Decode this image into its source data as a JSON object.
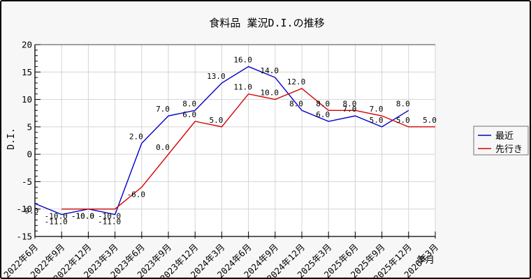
{
  "title": "食料品 業況D.I.の推移",
  "y_axis": {
    "title": "D.I.",
    "tick_labels": [
      "20",
      "15",
      "10",
      "5",
      "0",
      "-5",
      "-10",
      "-15"
    ]
  },
  "x_axis": {
    "title": "年月"
  },
  "legend": {
    "items": [
      {
        "label": "最近",
        "color": "#0000c8"
      },
      {
        "label": "先行き",
        "color": "#d40000"
      }
    ]
  },
  "colors": {
    "background": "#f7f7f7",
    "plot_background": "#ffffff",
    "grid": "#d4d4d4",
    "axis": "#000000",
    "frame_top": "#444444",
    "recent_blue": "#0000c8",
    "outlook_red": "#d40000"
  },
  "chart_data": {
    "type": "line",
    "title": "食料品 業況D.I.の推移",
    "xlabel": "年月",
    "ylabel": "D.I.",
    "categories": [
      "2022年6月",
      "2022年9月",
      "2022年12月",
      "2023年3月",
      "2023年6月",
      "2023年9月",
      "2023年12月",
      "2024年3月",
      "2024年6月",
      "2024年9月",
      "2024年12月",
      "2025年3月",
      "2025年6月",
      "2025年9月",
      "2025年12月",
      "2026年3月"
    ],
    "series": [
      {
        "name": "最近",
        "color": "#0000c8",
        "values": [
          -9.0,
          -11.0,
          -10.0,
          -11.0,
          2.0,
          7.0,
          8.0,
          13.0,
          16.0,
          14.0,
          8.0,
          6.0,
          7.0,
          5.0,
          8.0,
          null
        ]
      },
      {
        "name": "先行き",
        "color": "#d40000",
        "values": [
          null,
          -10.0,
          -10.0,
          -10.0,
          -6.0,
          0.0,
          6.0,
          5.0,
          11.0,
          10.0,
          12.0,
          8.0,
          8.0,
          7.0,
          5.0,
          5.0
        ]
      }
    ],
    "ylim": [
      -15,
      20
    ],
    "yticks": [
      20,
      15,
      10,
      5,
      0,
      -5,
      -10,
      -15
    ],
    "y_minor_step": 1,
    "grid": true,
    "point_labels": true,
    "legend_position": "right"
  }
}
